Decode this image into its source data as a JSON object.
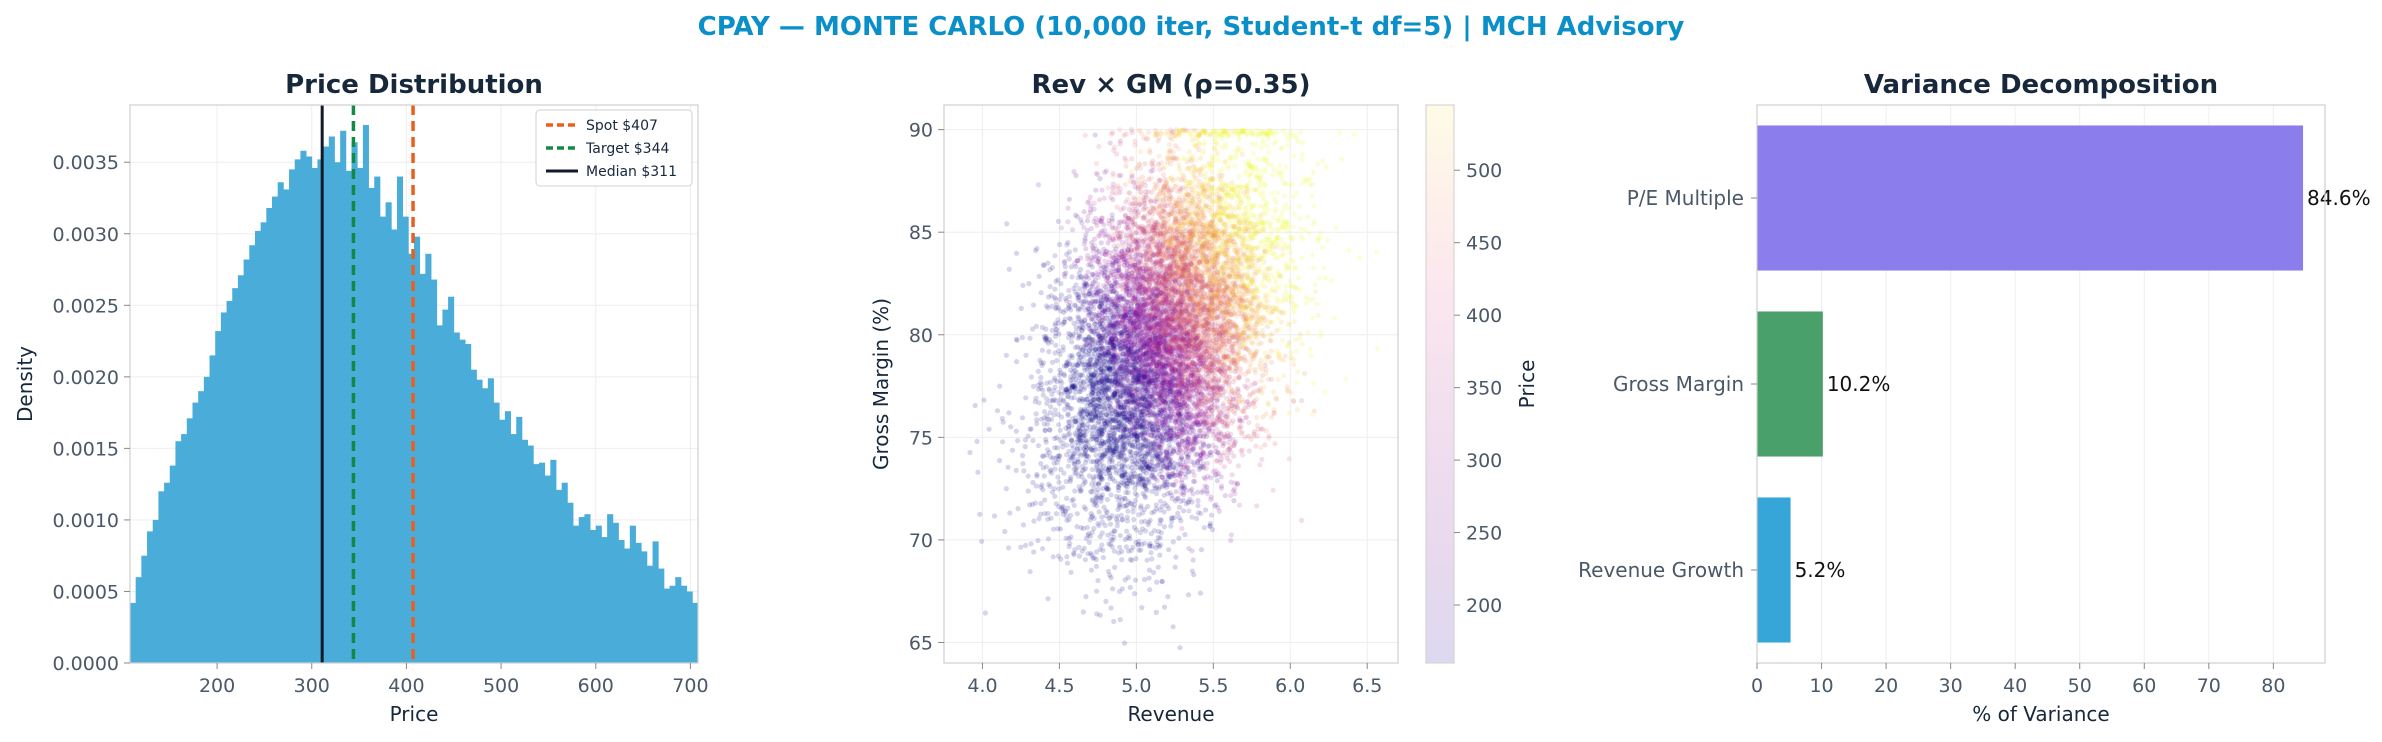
{
  "suptitle": "CPAY — MONTE CARLO (10,000 iter, Student-t df=5) | MCH Advisory",
  "colors": {
    "suptitle": "#0a8fc9",
    "title": "#17283c",
    "hist": "#4aadd9",
    "spot": "#e8601c",
    "target": "#138a43",
    "median": "#111a26",
    "pe": "#8b7deb",
    "gm": "#4aa06b",
    "rev": "#36a6d9"
  },
  "chart_data": [
    {
      "type": "bar",
      "subtype": "histogram",
      "title": "Price Distribution",
      "xlabel": "Price",
      "ylabel": "Density",
      "xlim": [
        108,
        708
      ],
      "ylim": [
        0,
        0.0039
      ],
      "xticks": [
        "200",
        "300",
        "400",
        "500",
        "600",
        "700"
      ],
      "yticks": [
        "0.0000",
        "0.0005",
        "0.0010",
        "0.0015",
        "0.0020",
        "0.0025",
        "0.0030",
        "0.0035"
      ],
      "bin_start": 108,
      "bin_width": 6,
      "values": [
        0.00042,
        0.0006,
        0.00075,
        0.00092,
        0.001,
        0.0012,
        0.00126,
        0.00138,
        0.00155,
        0.0016,
        0.00171,
        0.00182,
        0.0019,
        0.002,
        0.00215,
        0.00232,
        0.00245,
        0.00253,
        0.00262,
        0.00271,
        0.00282,
        0.00292,
        0.00302,
        0.00308,
        0.00318,
        0.00326,
        0.00336,
        0.00331,
        0.00345,
        0.00352,
        0.00358,
        0.00354,
        0.00346,
        0.00352,
        0.00361,
        0.00368,
        0.0035,
        0.00372,
        0.00344,
        0.00364,
        0.00346,
        0.00376,
        0.00332,
        0.0034,
        0.00312,
        0.00322,
        0.00303,
        0.0034,
        0.00312,
        0.00286,
        0.00298,
        0.00272,
        0.00286,
        0.00268,
        0.00236,
        0.00247,
        0.00256,
        0.00231,
        0.00226,
        0.00223,
        0.00205,
        0.00198,
        0.00192,
        0.00199,
        0.00182,
        0.0017,
        0.00176,
        0.0016,
        0.00172,
        0.00156,
        0.00152,
        0.00139,
        0.0014,
        0.00131,
        0.00142,
        0.00121,
        0.00126,
        0.00112,
        0.00096,
        0.00102,
        0.00104,
        0.00093,
        0.00096,
        0.00088,
        0.00104,
        0.00098,
        0.00086,
        0.0008,
        0.00096,
        0.00084,
        0.00078,
        0.00068,
        0.00085,
        0.00066,
        0.00052,
        0.00054,
        0.0006,
        0.00054,
        0.0005,
        0.00042
      ],
      "reference_lines": [
        {
          "label": "Spot $407",
          "x": 407,
          "style": "dashed",
          "color": "#e8601c"
        },
        {
          "label": "Target $344",
          "x": 344,
          "style": "dashed",
          "color": "#138a43"
        },
        {
          "label": "Median $311",
          "x": 311,
          "style": "solid",
          "color": "#111a26"
        }
      ],
      "legend_position": "top-right",
      "grid": true
    },
    {
      "type": "scatter",
      "title": "Rev × GM (ρ=0.35)",
      "xlabel": "Revenue",
      "ylabel": "Gross Margin (%)",
      "xlim": [
        3.75,
        6.7
      ],
      "ylim": [
        64,
        91.2
      ],
      "xticks": [
        "4.0",
        "4.5",
        "5.0",
        "5.5",
        "6.0",
        "6.5"
      ],
      "yticks": [
        "65",
        "70",
        "75",
        "80",
        "85",
        "90"
      ],
      "n_points": 10000,
      "revenue_mean": 5.2,
      "revenue_sd": 0.35,
      "gm_mean": 80,
      "gm_sd": 4.3,
      "gm_max": 90,
      "correlation": 0.35,
      "colorbar": {
        "label": "Price",
        "colormap": "plasma",
        "range": [
          160,
          545
        ],
        "ticks": [
          "200",
          "250",
          "300",
          "350",
          "400",
          "450",
          "500"
        ]
      },
      "grid": true
    },
    {
      "type": "bar",
      "orientation": "horizontal",
      "title": "Variance Decomposition",
      "xlabel": "% of Variance",
      "xlim": [
        0,
        88
      ],
      "xticks": [
        "0",
        "10",
        "20",
        "30",
        "40",
        "50",
        "60",
        "70",
        "80"
      ],
      "categories": [
        "P/E Multiple",
        "Gross Margin",
        "Revenue Growth"
      ],
      "values": [
        84.6,
        10.2,
        5.2
      ],
      "labels": [
        "84.6%",
        "10.2%",
        "5.2%"
      ],
      "colors": [
        "#8b7deb",
        "#4aa06b",
        "#36a6d9"
      ],
      "grid": true
    }
  ]
}
